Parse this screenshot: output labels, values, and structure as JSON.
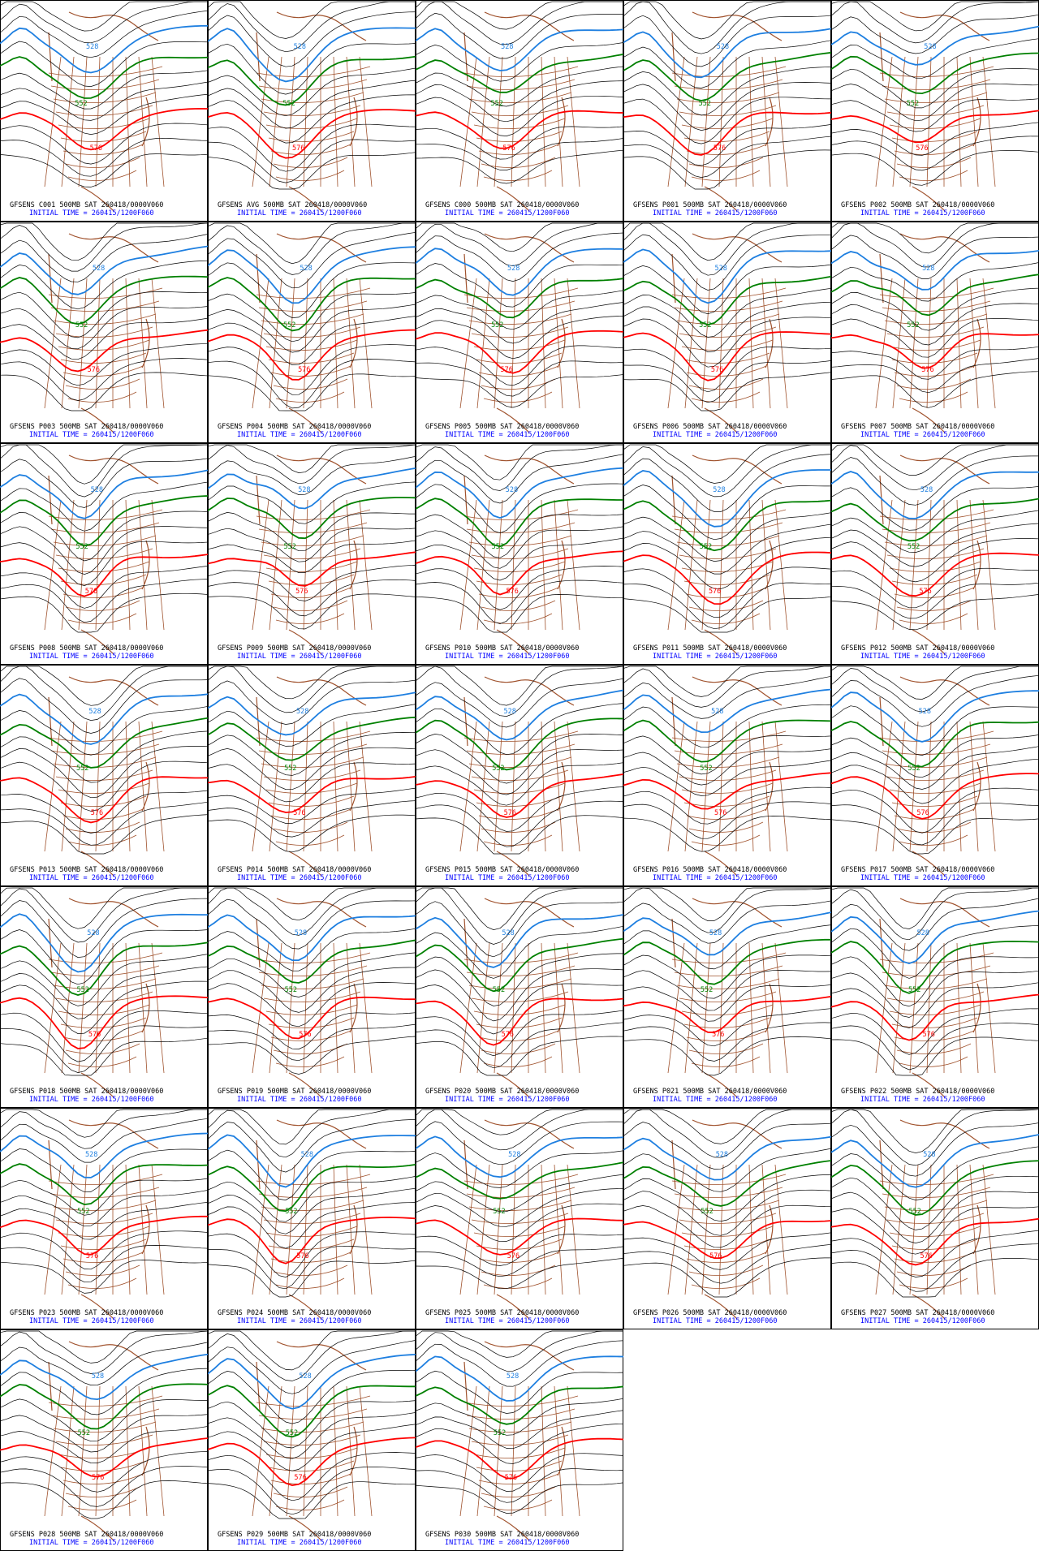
{
  "contour_labels": [
    "528",
    "552",
    "576"
  ],
  "panels": [
    {
      "title": "GFSENS C001 500MB SAT 260418/0000V060",
      "initial": "INITIAL TIME = 260415/1200F060"
    },
    {
      "title": "GFSENS AVG 500MB SAT 260418/0000V060",
      "initial": "INITIAL TIME = 260415/1200F060"
    },
    {
      "title": "GFSENS C000 500MB SAT 260418/0000V060",
      "initial": "INITIAL TIME = 260415/1200F060"
    },
    {
      "title": "GFSENS P001 500MB SAT 260418/0000V060",
      "initial": "INITIAL TIME = 260415/1200F060"
    },
    {
      "title": "GFSENS P002 500MB SAT 260418/0000V060",
      "initial": "INITIAL TIME = 260415/1200F060"
    },
    {
      "title": "GFSENS P003 500MB SAT 260418/0000V060",
      "initial": "INITIAL TIME = 260415/1200F060"
    },
    {
      "title": "GFSENS P004 500MB SAT 260418/0000V060",
      "initial": "INITIAL TIME = 260415/1200F060"
    },
    {
      "title": "GFSENS P005 500MB SAT 260418/0000V060",
      "initial": "INITIAL TIME = 260415/1200F060"
    },
    {
      "title": "GFSENS P006 500MB SAT 260418/0000V060",
      "initial": "INITIAL TIME = 260415/1200F060"
    },
    {
      "title": "GFSENS P007 500MB SAT 260418/0000V060",
      "initial": "INITIAL TIME = 260415/1200F060"
    },
    {
      "title": "GFSENS P008 500MB SAT 260418/0000V060",
      "initial": "INITIAL TIME = 260415/1200F060"
    },
    {
      "title": "GFSENS P009 500MB SAT 260418/0000V060",
      "initial": "INITIAL TIME = 260415/1200F060"
    },
    {
      "title": "GFSENS P010 500MB SAT 260418/0000V060",
      "initial": "INITIAL TIME = 260415/1200F060"
    },
    {
      "title": "GFSENS P011 500MB SAT 260418/0000V060",
      "initial": "INITIAL TIME = 260415/1200F060"
    },
    {
      "title": "GFSENS P012 500MB SAT 260418/0000V060",
      "initial": "INITIAL TIME = 260415/1200F060"
    },
    {
      "title": "GFSENS P013 500MB SAT 260418/0000V060",
      "initial": "INITIAL TIME = 260415/1200F060"
    },
    {
      "title": "GFSENS P014 500MB SAT 260418/0000V060",
      "initial": "INITIAL TIME = 260415/1200F060"
    },
    {
      "title": "GFSENS P015 500MB SAT 260418/0000V060",
      "initial": "INITIAL TIME = 260415/1200F060"
    },
    {
      "title": "GFSENS P016 500MB SAT 260418/0000V060",
      "initial": "INITIAL TIME = 260415/1200F060"
    },
    {
      "title": "GFSENS P017 500MB SAT 260418/0000V060",
      "initial": "INITIAL TIME = 260415/1200F060"
    },
    {
      "title": "GFSENS P018 500MB SAT 260418/0000V060",
      "initial": "INITIAL TIME = 260415/1200F060"
    },
    {
      "title": "GFSENS P019 500MB SAT 260418/0000V060",
      "initial": "INITIAL TIME = 260415/1200F060"
    },
    {
      "title": "GFSENS P020 500MB SAT 260418/0000V060",
      "initial": "INITIAL TIME = 260415/1200F060"
    },
    {
      "title": "GFSENS P021 500MB SAT 260418/0000V060",
      "initial": "INITIAL TIME = 260415/1200F060"
    },
    {
      "title": "GFSENS P022 500MB SAT 260418/0000V060",
      "initial": "INITIAL TIME = 260415/1200F060"
    },
    {
      "title": "GFSENS P023 500MB SAT 260418/0000V060",
      "initial": "INITIAL TIME = 260415/1200F060"
    },
    {
      "title": "GFSENS P024 500MB SAT 260418/0000V060",
      "initial": "INITIAL TIME = 260415/1200F060"
    },
    {
      "title": "GFSENS P025 500MB SAT 260418/0000V060",
      "initial": "INITIAL TIME = 260415/1200F060"
    },
    {
      "title": "GFSENS P026 500MB SAT 260418/0000V060",
      "initial": "INITIAL TIME = 260415/1200F060"
    },
    {
      "title": "GFSENS P027 500MB SAT 260418/0000V060",
      "initial": "INITIAL TIME = 260415/1200F060"
    },
    {
      "title": "GFSENS P028 500MB SAT 260418/0000V060",
      "initial": "INITIAL TIME = 260415/1200F060"
    },
    {
      "title": "GFSENS P029 500MB SAT 260418/0000V060",
      "initial": "INITIAL TIME = 260415/1200F060"
    },
    {
      "title": "GFSENS P030 500MB SAT 260418/0000V060",
      "initial": "INITIAL TIME = 260415/1200F060"
    }
  ]
}
